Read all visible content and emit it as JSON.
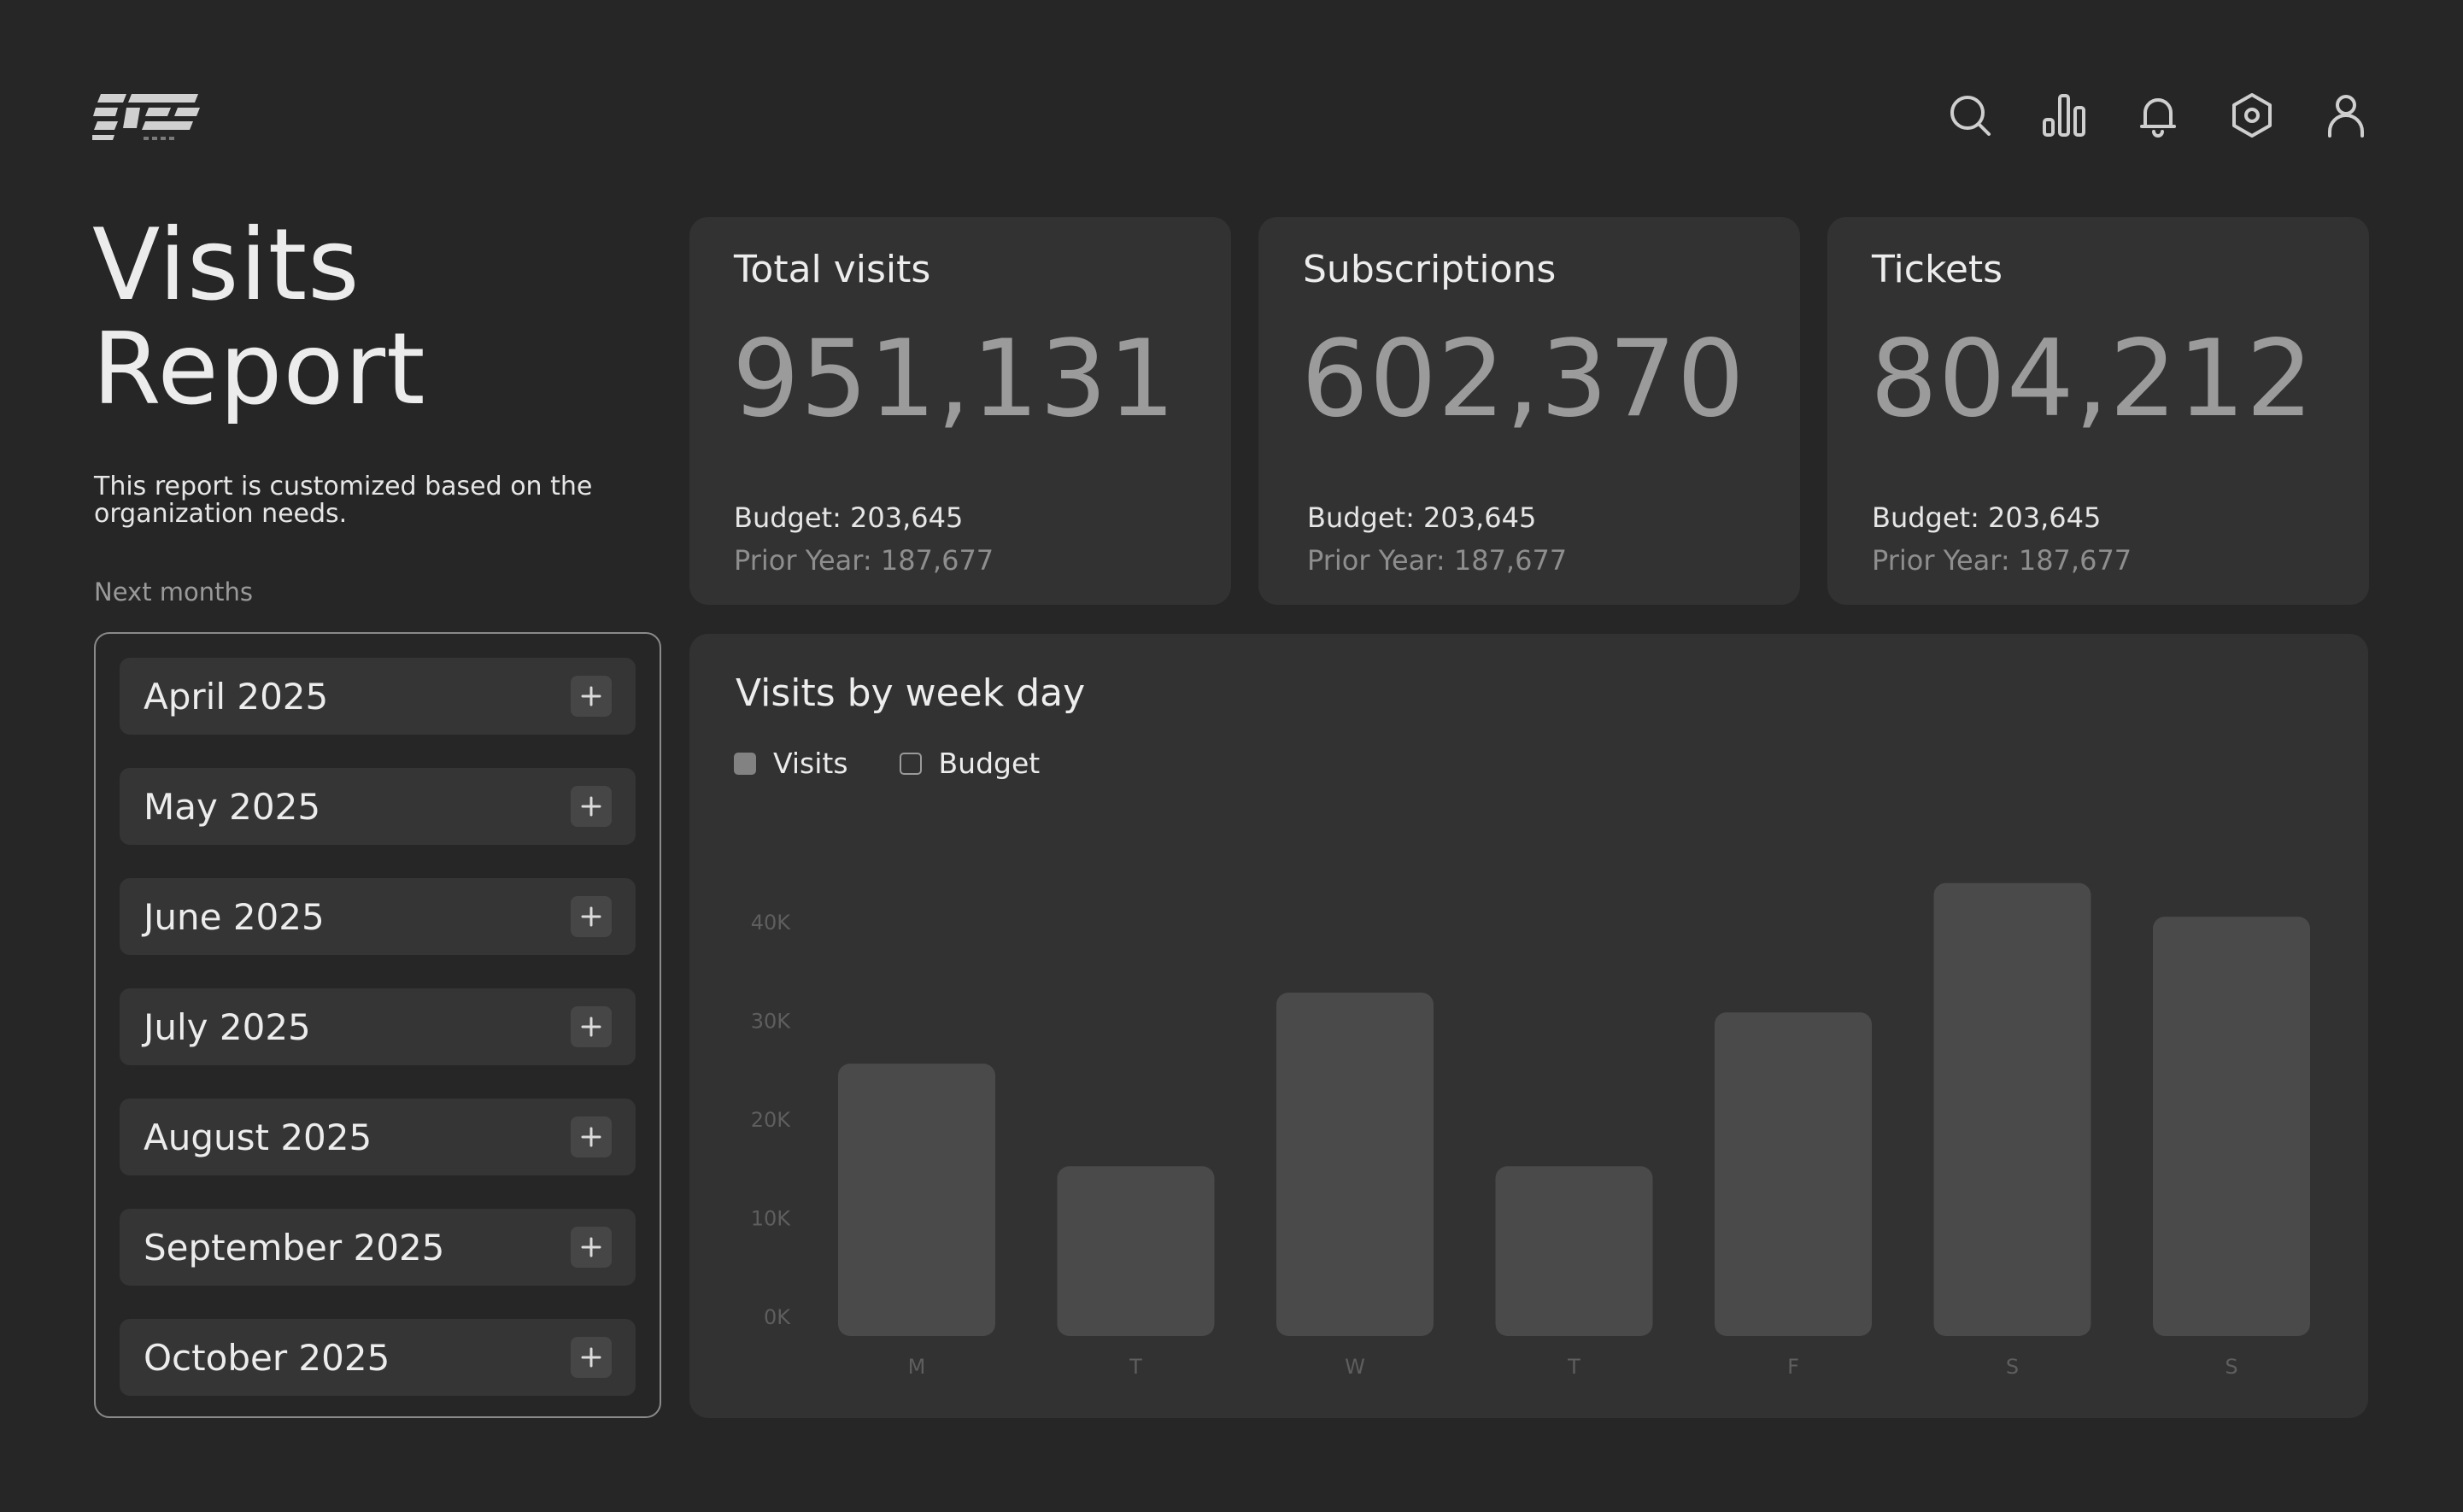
{
  "header": {
    "logo_icon": "brand-logo-icon",
    "icons": [
      {
        "name": "search-icon"
      },
      {
        "name": "bar-chart-icon"
      },
      {
        "name": "bell-icon"
      },
      {
        "name": "settings-icon"
      },
      {
        "name": "user-icon"
      }
    ]
  },
  "page": {
    "title_line1": "Visits",
    "title_line2": "Report",
    "subtitle": "This report is customized based on the organization needs.",
    "next_label": "Next months"
  },
  "months": [
    {
      "label": "April 2025"
    },
    {
      "label": "May 2025"
    },
    {
      "label": "June 2025"
    },
    {
      "label": "July 2025"
    },
    {
      "label": "August 2025"
    },
    {
      "label": "September 2025"
    },
    {
      "label": "October 2025"
    }
  ],
  "cards": [
    {
      "title": "Total visits",
      "value": "951,131",
      "budget": "Budget: 203,645",
      "prior": "Prior Year: 187,677"
    },
    {
      "title": "Subscriptions",
      "value": "602,370",
      "budget": "Budget: 203,645",
      "prior": "Prior Year: 187,677"
    },
    {
      "title": "Tickets",
      "value": "804,212",
      "budget": "Budget: 203,645",
      "prior": "Prior Year: 187,677"
    }
  ],
  "chart_data": {
    "type": "bar",
    "title": "Visits by week day",
    "categories": [
      "M",
      "T",
      "W",
      "T",
      "F",
      "S",
      "S"
    ],
    "series": [
      {
        "name": "Visits",
        "values": [
          25700,
          15300,
          32900,
          15300,
          30900,
          44000,
          40600
        ]
      }
    ],
    "legend": [
      "Visits",
      "Budget"
    ],
    "y_ticks": [
      "0K",
      "10K",
      "20K",
      "30K",
      "40K"
    ],
    "ylim": [
      0,
      40000
    ],
    "grid": false,
    "legend_position": "top-left",
    "colors": {
      "bar": "#4a4a4a",
      "tick": "#5e5e5e"
    }
  }
}
